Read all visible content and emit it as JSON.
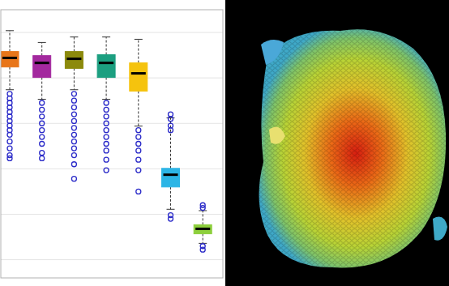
{
  "chart_data": {
    "type": "box",
    "categories": [
      null,
      null,
      null,
      null,
      null,
      null,
      null
    ],
    "colors": [
      "#e8761a",
      "#a3299e",
      "#8c8a0c",
      "#1c9f80",
      "#f5c30e",
      "#2cb5e6",
      "#8dcf3c"
    ],
    "whisker_low": [
      3.74,
      3.53,
      3.74,
      3.53,
      2.94,
      1.11,
      0.36
    ],
    "q1": [
      4.24,
      4.01,
      4.21,
      4.01,
      3.71,
      1.6,
      0.57
    ],
    "median": [
      4.44,
      4.33,
      4.42,
      4.33,
      4.1,
      1.87,
      0.68
    ],
    "q3": [
      4.58,
      4.49,
      4.58,
      4.51,
      4.33,
      2.01,
      0.77
    ],
    "whisker_high": [
      5.04,
      4.78,
      4.9,
      4.9,
      4.85,
      3.12,
      1.08
    ],
    "outliers": [
      [
        3.65,
        3.55,
        3.45,
        3.35,
        3.25,
        3.15,
        3.05,
        2.95,
        2.85,
        2.75,
        2.6,
        2.45,
        2.3,
        2.23
      ],
      [
        3.45,
        3.3,
        3.15,
        3.0,
        2.85,
        2.7,
        2.55,
        2.35,
        2.23
      ],
      [
        3.65,
        3.5,
        3.35,
        3.2,
        3.05,
        2.9,
        2.75,
        2.6,
        2.45,
        2.3,
        2.1,
        1.78
      ],
      [
        3.45,
        3.3,
        3.15,
        3.0,
        2.85,
        2.7,
        2.55,
        2.4,
        2.2,
        1.97
      ],
      [
        2.85,
        2.7,
        2.55,
        2.4,
        2.2,
        1.97,
        1.5
      ],
      [
        3.2,
        3.1,
        2.95,
        2.85,
        0.98,
        0.9
      ],
      [
        1.2,
        1.14,
        0.3,
        0.22
      ]
    ],
    "ylim": [
      -0.4,
      5.5
    ],
    "yticks": [
      0,
      1,
      2,
      3,
      4,
      5
    ],
    "grid": true,
    "tick_labels": false,
    "marker": "circle"
  }
}
